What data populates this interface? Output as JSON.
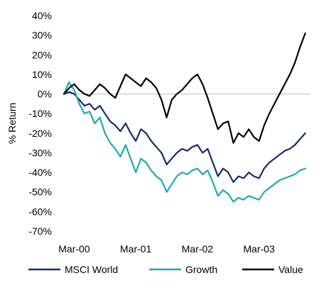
{
  "chart_data": {
    "type": "line",
    "title": "",
    "xlabel": "",
    "ylabel": "% Return",
    "ylim": [
      -70,
      40
    ],
    "yticks": [
      {
        "value": 40,
        "label": "40%"
      },
      {
        "value": 30,
        "label": "30%"
      },
      {
        "value": 20,
        "label": "20%"
      },
      {
        "value": 10,
        "label": "10%"
      },
      {
        "value": 0,
        "label": "0%"
      },
      {
        "value": -10,
        "label": "-10%"
      },
      {
        "value": -20,
        "label": "-20%"
      },
      {
        "value": -30,
        "label": "-30%"
      },
      {
        "value": -40,
        "label": "-40%"
      },
      {
        "value": -50,
        "label": "-50%"
      },
      {
        "value": -60,
        "label": "-60%"
      },
      {
        "value": -70,
        "label": "-70%"
      }
    ],
    "xlim": [
      "2000-01",
      "2004-01"
    ],
    "xticks": [
      {
        "value": "2000-03",
        "label": "Mar-00"
      },
      {
        "value": "2001-03",
        "label": "Mar-01"
      },
      {
        "value": "2002-03",
        "label": "Mar-02"
      },
      {
        "value": "2003-03",
        "label": "Mar-03"
      }
    ],
    "zero_line": true,
    "grid": false,
    "legend_position": "bottom",
    "x": [
      "2000-01",
      "2000-02",
      "2000-03",
      "2000-04",
      "2000-05",
      "2000-06",
      "2000-07",
      "2000-08",
      "2000-09",
      "2000-10",
      "2000-11",
      "2000-12",
      "2001-01",
      "2001-02",
      "2001-03",
      "2001-04",
      "2001-05",
      "2001-06",
      "2001-07",
      "2001-08",
      "2001-09",
      "2001-10",
      "2001-11",
      "2001-12",
      "2002-01",
      "2002-02",
      "2002-03",
      "2002-04",
      "2002-05",
      "2002-06",
      "2002-07",
      "2002-08",
      "2002-09",
      "2002-10",
      "2002-11",
      "2002-12",
      "2003-01",
      "2003-02",
      "2003-03",
      "2003-04",
      "2003-05",
      "2003-06",
      "2003-07",
      "2003-08",
      "2003-09",
      "2003-10",
      "2003-11",
      "2003-12"
    ],
    "series": [
      {
        "name": "MSCI World",
        "color": "#1a2a6c",
        "values": [
          0,
          1,
          0,
          -3,
          -6,
          -5,
          -8,
          -6,
          -10,
          -14,
          -16,
          -19,
          -15,
          -20,
          -24,
          -18,
          -20,
          -24,
          -27,
          -30,
          -36,
          -33,
          -30,
          -28,
          -29,
          -27,
          -26,
          -30,
          -28,
          -35,
          -42,
          -38,
          -40,
          -45,
          -42,
          -43,
          -40,
          -42,
          -43,
          -38,
          -35,
          -33,
          -31,
          -29,
          -28,
          -26,
          -23,
          -20
        ]
      },
      {
        "name": "Growth",
        "color": "#1fa9b6",
        "values": [
          0,
          6,
          2,
          -5,
          -10,
          -9,
          -15,
          -12,
          -20,
          -25,
          -28,
          -32,
          -26,
          -33,
          -40,
          -33,
          -35,
          -39,
          -42,
          -44,
          -50,
          -46,
          -42,
          -40,
          -41,
          -39,
          -38,
          -41,
          -39,
          -45,
          -52,
          -49,
          -51,
          -55,
          -53,
          -54,
          -52,
          -53,
          -54,
          -50,
          -48,
          -46,
          -44,
          -43,
          -42,
          -41,
          -39,
          -38
        ]
      },
      {
        "name": "Value",
        "color": "#000000",
        "values": [
          0,
          3,
          5,
          2,
          0,
          -1,
          2,
          5,
          3,
          0,
          -2,
          4,
          10,
          8,
          6,
          4,
          8,
          6,
          3,
          -3,
          -12,
          -3,
          0,
          2,
          5,
          8,
          10,
          5,
          -2,
          -10,
          -18,
          -15,
          -14,
          -25,
          -20,
          -22,
          -18,
          -22,
          -24,
          -16,
          -10,
          -5,
          0,
          5,
          10,
          16,
          24,
          31
        ]
      }
    ]
  }
}
